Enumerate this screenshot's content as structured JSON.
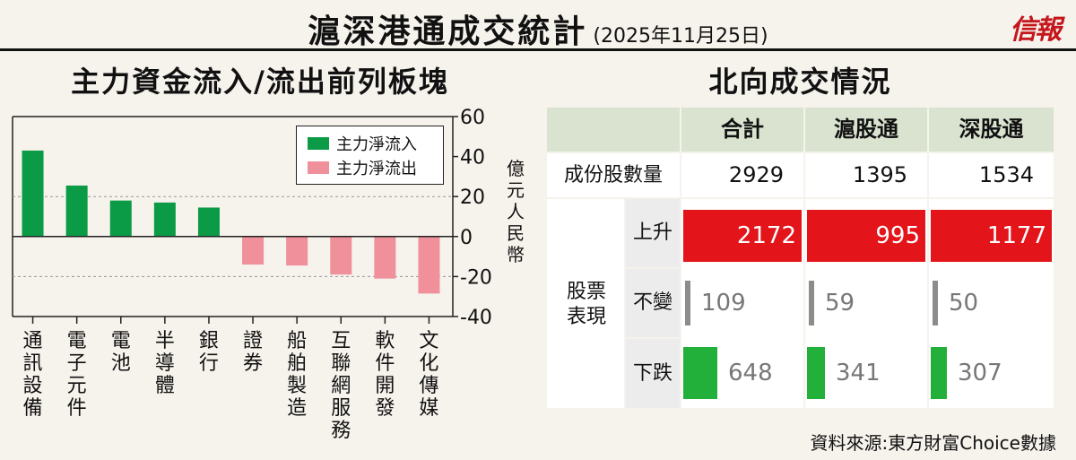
{
  "header": {
    "title": "滬深港通成交統計",
    "date": "(2025年11月25日)",
    "logo_text": "信報"
  },
  "left_panel": {
    "title": "主力資金流入/流出前列板塊",
    "ylabel": "億元人民幣"
  },
  "chart_data": {
    "type": "bar",
    "categories": [
      "通訊設備",
      "電子元件",
      "電池",
      "半導體",
      "銀行",
      "證券",
      "船舶製造",
      "互聯網服務",
      "軟件開發",
      "文化傳媒"
    ],
    "values": [
      43,
      25.5,
      18,
      17,
      14.5,
      -14,
      -14.5,
      -19,
      -21,
      -28.5
    ],
    "ylim": [
      -40,
      60
    ],
    "yticks": [
      60,
      40,
      20,
      0,
      -20,
      -40
    ],
    "series": [
      {
        "name": "主力淨流入",
        "color": "#0b9a45"
      },
      {
        "name": "主力淨流出",
        "color": "#f0909a"
      }
    ],
    "grid": "dashed at ±20",
    "legend_placement": "top-right"
  },
  "right_panel": {
    "title": "北向成交情況",
    "columns": [
      "合計",
      "滬股通",
      "深股通"
    ],
    "constituents_label": "成份股數量",
    "constituents": [
      "2929",
      "1395",
      "1534"
    ],
    "group_label": "股票表現",
    "rows": [
      {
        "label": "上升",
        "values": [
          "2172",
          "995",
          "1177"
        ],
        "color": "#e3141a"
      },
      {
        "label": "不變",
        "values": [
          "109",
          "59",
          "50"
        ],
        "color": "#8c8c8c"
      },
      {
        "label": "下跌",
        "values": [
          "648",
          "341",
          "307"
        ],
        "color": "#22b03a"
      }
    ]
  },
  "footer": {
    "source": "資料來源:東方財富Choice數據"
  }
}
